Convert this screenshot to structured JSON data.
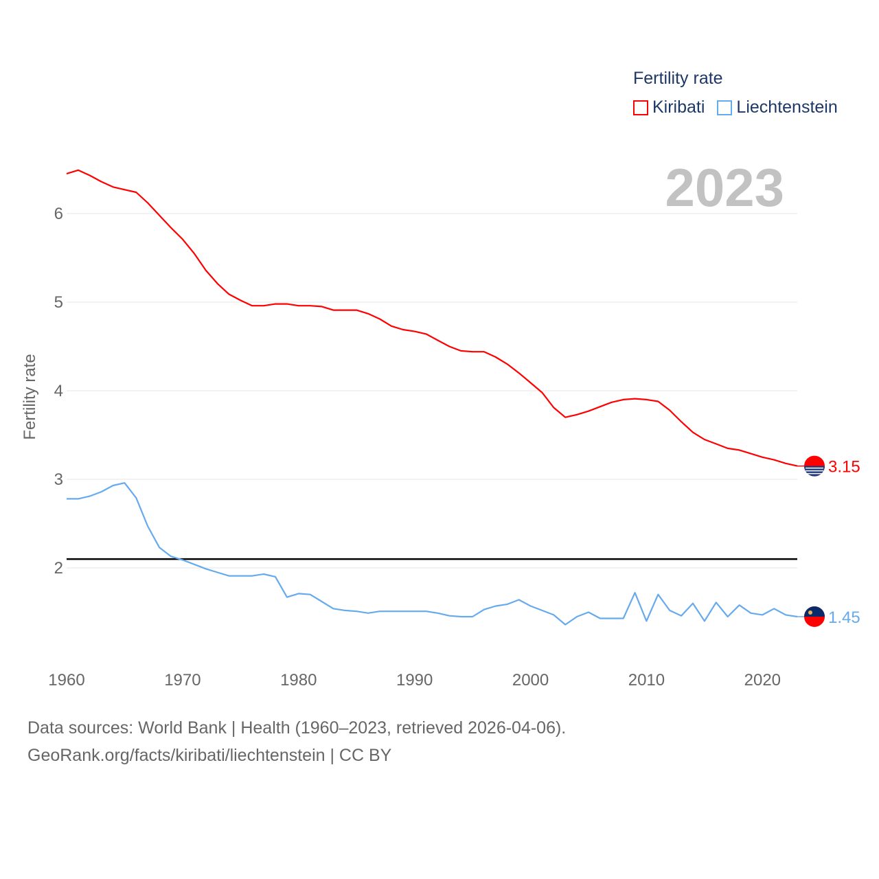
{
  "chart_data": {
    "type": "line",
    "title": "",
    "legend_title": "Fertility rate",
    "ylabel": "Fertility rate",
    "xlabel": "",
    "year_label": "2023",
    "xlim": [
      1960,
      2023
    ],
    "ylim": [
      1.1,
      6.6
    ],
    "yticks": [
      2,
      3,
      4,
      5,
      6
    ],
    "xticks": [
      1960,
      1970,
      1980,
      1990,
      2000,
      2010,
      2020
    ],
    "legend_position": "top-right",
    "grid": true,
    "reference_line": {
      "value": 2.1,
      "color": "#000000"
    },
    "x": [
      1960,
      1961,
      1962,
      1963,
      1964,
      1965,
      1966,
      1967,
      1968,
      1969,
      1970,
      1971,
      1972,
      1973,
      1974,
      1975,
      1976,
      1977,
      1978,
      1979,
      1980,
      1981,
      1982,
      1983,
      1984,
      1985,
      1986,
      1987,
      1988,
      1989,
      1990,
      1991,
      1992,
      1993,
      1994,
      1995,
      1996,
      1997,
      1998,
      1999,
      2000,
      2001,
      2002,
      2003,
      2004,
      2005,
      2006,
      2007,
      2008,
      2009,
      2010,
      2011,
      2012,
      2013,
      2014,
      2015,
      2016,
      2017,
      2018,
      2019,
      2020,
      2021,
      2022,
      2023
    ],
    "series": [
      {
        "name": "Kiribati",
        "color": "#ff0000",
        "end_label": "3.15",
        "values": [
          6.45,
          6.49,
          6.43,
          6.36,
          6.3,
          6.27,
          6.24,
          6.12,
          5.98,
          5.84,
          5.71,
          5.55,
          5.36,
          5.21,
          5.09,
          5.02,
          4.96,
          4.96,
          4.98,
          4.98,
          4.96,
          4.96,
          4.95,
          4.91,
          4.91,
          4.91,
          4.87,
          4.81,
          4.73,
          4.69,
          4.67,
          4.64,
          4.57,
          4.5,
          4.45,
          4.44,
          4.44,
          4.38,
          4.3,
          4.2,
          4.09,
          3.98,
          3.81,
          3.7,
          3.73,
          3.77,
          3.82,
          3.87,
          3.9,
          3.91,
          3.9,
          3.88,
          3.78,
          3.65,
          3.53,
          3.45,
          3.4,
          3.35,
          3.33,
          3.29,
          3.25,
          3.22,
          3.18,
          3.15
        ]
      },
      {
        "name": "Liechtenstein",
        "color": "#66aaee",
        "end_label": "1.45",
        "values": [
          2.78,
          2.78,
          2.81,
          2.86,
          2.93,
          2.96,
          2.79,
          2.47,
          2.23,
          2.13,
          2.09,
          2.04,
          1.99,
          1.95,
          1.91,
          1.91,
          1.91,
          1.93,
          1.9,
          1.67,
          1.71,
          1.7,
          1.62,
          1.54,
          1.52,
          1.51,
          1.49,
          1.51,
          1.51,
          1.51,
          1.51,
          1.51,
          1.49,
          1.46,
          1.45,
          1.45,
          1.53,
          1.57,
          1.59,
          1.64,
          1.57,
          1.52,
          1.47,
          1.36,
          1.45,
          1.5,
          1.43,
          1.43,
          1.43,
          1.72,
          1.4,
          1.7,
          1.52,
          1.46,
          1.6,
          1.4,
          1.61,
          1.45,
          1.58,
          1.49,
          1.47,
          1.54,
          1.47,
          1.45
        ]
      }
    ]
  },
  "footer": {
    "line1": "Data sources: World Bank | Health (1960–2023, retrieved 2026-04-06).",
    "line2": "GeoRank.org/facts/kiribati/liechtenstein | CC BY"
  }
}
